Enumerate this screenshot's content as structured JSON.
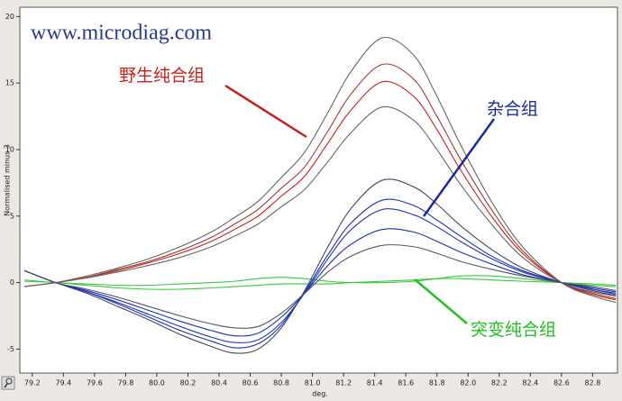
{
  "chart_data": {
    "type": "line",
    "watermark": "www.microdiag.com",
    "xlabel": "deg.",
    "ylabel": "Normalised minus 3",
    "annotations": [
      {
        "text": "野生纯合组",
        "color": "#c8201c"
      },
      {
        "text": "杂合组",
        "color": "#1a2a9c"
      },
      {
        "text": "突变纯合组",
        "color": "#22c022"
      }
    ],
    "x": [
      79.15,
      79.35,
      79.55,
      79.75,
      79.95,
      80.15,
      80.35,
      80.5,
      80.65,
      80.8,
      80.95,
      81.1,
      81.25,
      81.45,
      81.65,
      81.8,
      81.95,
      82.15,
      82.35,
      82.6,
      82.8,
      82.95
    ],
    "series": [
      {
        "color": "#3cc83c",
        "values": [
          0.2,
          0,
          -0.1,
          -0.2,
          -0.2,
          -0.1,
          0,
          0.1,
          0.3,
          0.4,
          0.3,
          0.1,
          0,
          0,
          0.1,
          0.3,
          0.5,
          0.5,
          0.3,
          0,
          -0.2,
          -0.3
        ]
      },
      {
        "color": "#3cc83c",
        "values": [
          0.1,
          0,
          -0.2,
          -0.4,
          -0.5,
          -0.5,
          -0.4,
          -0.3,
          -0.2,
          -0.1,
          -0.1,
          -0.1,
          0,
          0.1,
          0.2,
          0.3,
          0.3,
          0.2,
          0.1,
          0,
          -0.1,
          -0.2
        ]
      },
      {
        "color": "#666666",
        "values": [
          -0.3,
          0,
          0.5,
          1.1,
          1.8,
          2.7,
          3.8,
          4.9,
          6.1,
          7.9,
          9.8,
          12.8,
          15.9,
          18.4,
          17.1,
          14.0,
          10.4,
          6.1,
          2.7,
          0,
          -1.0,
          -1.5
        ]
      },
      {
        "color": "#a23a36",
        "values": [
          -0.3,
          0,
          0.4,
          1.0,
          1.6,
          2.4,
          3.4,
          4.4,
          5.5,
          7.1,
          8.7,
          11.4,
          14.2,
          16.4,
          15.3,
          12.5,
          9.3,
          5.5,
          2.4,
          0,
          -0.9,
          -1.3
        ]
      },
      {
        "color": "#c8201c",
        "values": [
          -0.3,
          0,
          0.4,
          0.9,
          1.5,
          2.2,
          3.1,
          4.0,
          5.0,
          6.5,
          8.0,
          10.5,
          13,
          15.1,
          14,
          11.5,
          8.5,
          5,
          2.2,
          0,
          -0.8,
          -1.2
        ]
      },
      {
        "color": "#666666",
        "values": [
          -0.3,
          0,
          0.35,
          0.8,
          1.3,
          1.9,
          2.7,
          3.5,
          4.4,
          5.7,
          7.0,
          9.1,
          11.3,
          13.2,
          12.2,
          10.0,
          7.4,
          4.4,
          1.9,
          0,
          -0.7,
          -1.0
        ]
      },
      {
        "color": "#444466",
        "values": [
          0.9,
          0,
          -0.8,
          -1.8,
          -2.8,
          -3.9,
          -4.8,
          -5.3,
          -5.0,
          -3.4,
          -0.6,
          2.7,
          5.6,
          7.7,
          7.2,
          5.9,
          4.3,
          2.5,
          1.1,
          0,
          -0.6,
          -1.0
        ]
      },
      {
        "color": "#1a2fb0",
        "values": [
          0.9,
          0,
          -0.7,
          -1.6,
          -2.6,
          -3.6,
          -4.4,
          -4.9,
          -4.6,
          -3.2,
          -0.7,
          2.1,
          4.5,
          6.2,
          5.8,
          4.7,
          3.5,
          2.0,
          0.9,
          0,
          -0.5,
          -0.9
        ]
      },
      {
        "color": "#2236c0",
        "values": [
          0.9,
          0,
          -0.7,
          -1.5,
          -2.4,
          -3.3,
          -4.1,
          -4.5,
          -4.3,
          -3.0,
          -0.8,
          1.8,
          4.0,
          5.5,
          5.1,
          4.2,
          3.1,
          1.8,
          0.8,
          0,
          -0.5,
          -0.8
        ]
      },
      {
        "color": "#1a2fb0",
        "values": [
          0.9,
          0,
          -0.6,
          -1.3,
          -2.1,
          -2.9,
          -3.6,
          -4.0,
          -3.8,
          -2.6,
          -0.8,
          1.3,
          2.9,
          4.0,
          3.8,
          3.1,
          2.3,
          1.4,
          0.6,
          0,
          -0.4,
          -0.7
        ]
      },
      {
        "color": "#555566",
        "values": [
          0.9,
          0,
          -0.5,
          -1.1,
          -1.8,
          -2.5,
          -3.1,
          -3.4,
          -3.3,
          -2.3,
          -0.8,
          0.8,
          2.0,
          2.8,
          2.7,
          2.2,
          1.6,
          1.0,
          0.5,
          0,
          -0.3,
          -0.6
        ]
      }
    ],
    "xlim": [
      79.12,
      82.96
    ],
    "ylim": [
      -6.8,
      20.7
    ],
    "xticks": [
      79.2,
      79.4,
      79.6,
      79.8,
      {
        "value": 80,
        "label": "80.0"
      },
      80.2,
      80.4,
      80.6,
      80.8,
      {
        "value": 81,
        "label": "81.0"
      },
      81.2,
      81.4,
      81.6,
      81.8,
      {
        "value": 82,
        "label": "82.0"
      },
      82.2,
      82.4,
      82.6,
      82.8
    ],
    "yticks": [
      -5,
      0,
      5,
      10,
      15,
      20
    ]
  }
}
